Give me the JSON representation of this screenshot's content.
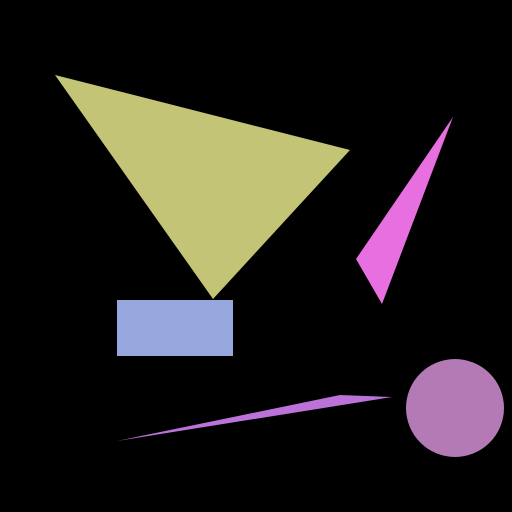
{
  "background_color": "#000000",
  "shapes": {
    "olive_triangle": {
      "kind": "triangle",
      "color": "#c3c476"
    },
    "magenta_triangle": {
      "kind": "triangle",
      "color": "#e86fe0"
    },
    "blue_rectangle": {
      "kind": "rectangle",
      "color": "#95a7dd"
    },
    "purple_sliver": {
      "kind": "triangle",
      "color": "#bb73d9"
    },
    "mauve_circle": {
      "kind": "circle",
      "color": "#b47ab5"
    }
  }
}
